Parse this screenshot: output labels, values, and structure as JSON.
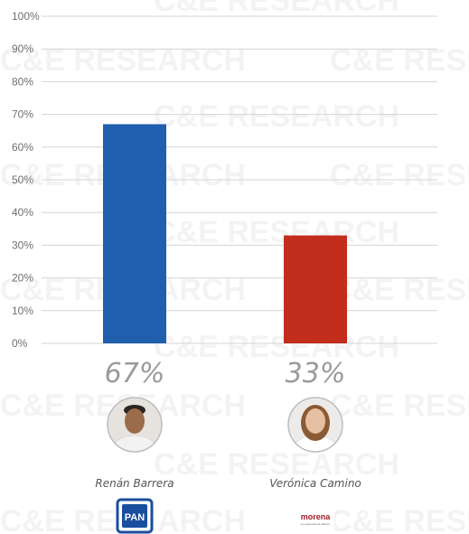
{
  "chart_data": {
    "type": "bar",
    "categories": [
      "Renán Barrera",
      "Verónica Camino"
    ],
    "values": [
      67,
      33
    ],
    "value_labels": [
      "67%",
      "33%"
    ],
    "colors": [
      "#1f5fae",
      "#c22d1c"
    ],
    "ylim": [
      0,
      100
    ],
    "yticks": [
      "0%",
      "10%",
      "20%",
      "30%",
      "40%",
      "50%",
      "60%",
      "70%",
      "80%",
      "90%",
      "100%"
    ],
    "grid": true,
    "parties": [
      "PAN",
      "morena"
    ]
  },
  "party_logos": {
    "pan": {
      "text": "PAN",
      "color": "#1a4e9e"
    },
    "morena": {
      "text": "morena",
      "tagline": "La esperanza de México",
      "color": "#a11c26"
    }
  },
  "watermark": "C&E RESEARCH"
}
